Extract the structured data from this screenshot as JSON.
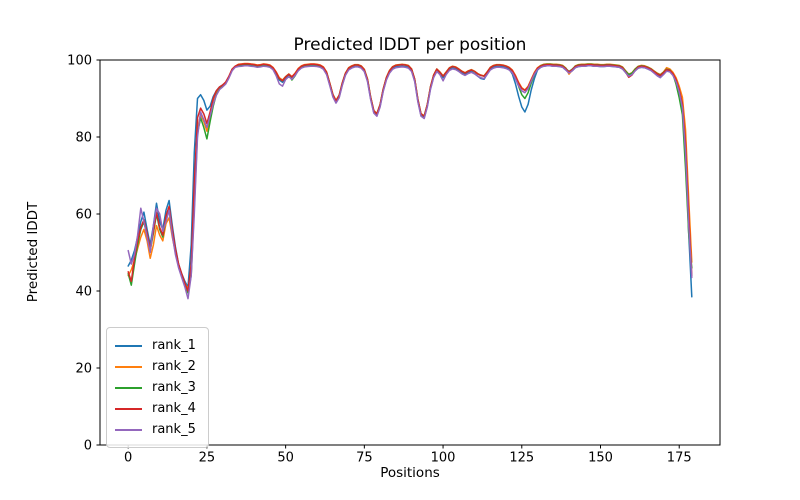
{
  "chart_data": {
    "type": "line",
    "title": "Predicted lDDT per position",
    "xlabel": "Positions",
    "ylabel": "Predicted lDDT",
    "xlim": [
      -8.95,
      187.95
    ],
    "ylim": [
      0,
      100
    ],
    "xticks": [
      0,
      25,
      50,
      75,
      100,
      125,
      150,
      175
    ],
    "yticks": [
      0,
      20,
      40,
      60,
      80,
      100
    ],
    "grid": false,
    "legend_position": "lower left",
    "x_start": 0,
    "x_step": 1,
    "series": [
      {
        "name": "rank_1",
        "color": "#1f77b4",
        "values": [
          46.5,
          48,
          50.5,
          54,
          58,
          60.5,
          56,
          52,
          57,
          62.8,
          58,
          56,
          61,
          63.5,
          57,
          51.5,
          47,
          44.5,
          42.5,
          41,
          52,
          76,
          90,
          91,
          89.5,
          87,
          88,
          90.5,
          92,
          93,
          93.5,
          94.2,
          95.6,
          97.4,
          98.2,
          98.4,
          98.5,
          98.6,
          98.6,
          98.5,
          98.4,
          98.2,
          98.3,
          98.5,
          98.4,
          98.2,
          97.6,
          96.4,
          94.8,
          94.2,
          95.2,
          95.9,
          95.2,
          96.1,
          97.3,
          98.0,
          98.3,
          98.4,
          98.5,
          98.5,
          98.4,
          98.2,
          97.7,
          96.4,
          93.6,
          90.6,
          89.0,
          90.4,
          93.6,
          96.1,
          97.5,
          98.0,
          98.3,
          98.3,
          98.0,
          97.1,
          94.6,
          90.0,
          86.4,
          85.6,
          88.0,
          92.0,
          95.0,
          96.8,
          97.8,
          98.2,
          98.3,
          98.4,
          98.3,
          98.1,
          97.2,
          94.6,
          89.3,
          85.6,
          85.0,
          88.0,
          92.6,
          95.6,
          97.2,
          96.4,
          95.4,
          96.4,
          97.5,
          97.9,
          97.7,
          97.2,
          96.6,
          96.2,
          96.7,
          97.0,
          96.5,
          95.8,
          95.2,
          95.0,
          96.3,
          97.6,
          98.1,
          98.3,
          98.3,
          98.2,
          98.0,
          97.6,
          96.4,
          93.8,
          90.6,
          87.8,
          86.5,
          88.5,
          92.2,
          95.2,
          97.4,
          98.1,
          98.4,
          98.5,
          98.5,
          98.4,
          98.4,
          98.3,
          98.1,
          97.4,
          96.6,
          97.2,
          98.0,
          98.3,
          98.4,
          98.4,
          98.5,
          98.5,
          98.4,
          98.4,
          98.3,
          98.3,
          98.4,
          98.4,
          98.3,
          98.2,
          98.1,
          97.7,
          96.7,
          95.9,
          96.2,
          97.2,
          97.9,
          98.1,
          98.0,
          97.7,
          97.3,
          96.7,
          96.1,
          95.7,
          96.4,
          97.2,
          97.0,
          96.2,
          94.7,
          92.2,
          88.3,
          77.5,
          55.0,
          38.5
        ]
      },
      {
        "name": "rank_2",
        "color": "#ff7f0e",
        "values": [
          44,
          45.5,
          48,
          51,
          54,
          56,
          53,
          48.5,
          52,
          57,
          54.5,
          53,
          57.5,
          59,
          54,
          50,
          46.5,
          44,
          42,
          40.5,
          45,
          64,
          82,
          86,
          84,
          81.5,
          85.5,
          89,
          91.5,
          92.8,
          93.3,
          94.1,
          95.6,
          97.6,
          98.4,
          98.9,
          99.0,
          99.1,
          99.1,
          99.0,
          98.9,
          98.7,
          98.8,
          99.0,
          98.9,
          98.7,
          98.1,
          96.9,
          95.4,
          94.8,
          95.7,
          96.4,
          95.7,
          96.6,
          97.8,
          98.5,
          98.8,
          98.9,
          99.0,
          99.0,
          98.9,
          98.7,
          98.2,
          96.9,
          94.1,
          91.1,
          89.5,
          90.9,
          94.1,
          96.6,
          98.0,
          98.5,
          98.8,
          98.8,
          98.5,
          97.6,
          95.1,
          90.5,
          86.9,
          86.1,
          88.5,
          92.5,
          95.5,
          97.3,
          98.3,
          98.7,
          98.8,
          98.9,
          98.8,
          98.6,
          97.7,
          95.1,
          89.8,
          86.1,
          85.5,
          88.5,
          93.1,
          96.1,
          97.7,
          96.9,
          95.9,
          96.9,
          98.0,
          98.4,
          98.2,
          97.7,
          97.1,
          96.7,
          97.2,
          97.5,
          97.1,
          96.5,
          96.1,
          95.9,
          96.9,
          98.1,
          98.6,
          98.8,
          98.8,
          98.7,
          98.5,
          98.1,
          97.4,
          96.0,
          94.2,
          92.8,
          92.2,
          93.2,
          95.0,
          96.8,
          98.0,
          98.6,
          98.9,
          99.0,
          99.0,
          98.9,
          98.9,
          98.8,
          98.6,
          97.9,
          96.3,
          97.3,
          98.5,
          98.8,
          98.9,
          98.9,
          99.0,
          99.0,
          98.9,
          98.9,
          98.8,
          98.8,
          98.9,
          98.9,
          98.8,
          98.7,
          98.6,
          98.2,
          97.2,
          96.3,
          96.7,
          97.7,
          98.4,
          98.6,
          98.5,
          98.2,
          97.8,
          97.2,
          96.6,
          96.2,
          96.9,
          98.0,
          97.7,
          96.8,
          95.4,
          93.2,
          90.3,
          82.0,
          64.0,
          47.5
        ]
      },
      {
        "name": "rank_3",
        "color": "#2ca02c",
        "values": [
          44.5,
          41.5,
          47,
          52,
          56,
          58,
          54.5,
          50.5,
          55,
          60,
          56,
          54,
          59,
          61,
          55,
          50.5,
          46.5,
          44,
          41.5,
          39.5,
          44,
          62,
          81,
          85,
          82.5,
          79.5,
          84,
          88,
          91,
          92.5,
          93.2,
          94.0,
          95.5,
          97.5,
          98.3,
          98.7,
          98.8,
          98.9,
          98.9,
          98.8,
          98.7,
          98.5,
          98.6,
          98.8,
          98.7,
          98.5,
          97.9,
          96.5,
          95.1,
          94.6,
          95.6,
          96.3,
          94.8,
          95.9,
          97.4,
          98.3,
          98.6,
          98.7,
          98.8,
          98.8,
          98.7,
          98.5,
          98.0,
          96.8,
          94.0,
          91.0,
          89.4,
          90.8,
          94.0,
          96.5,
          97.9,
          98.4,
          98.7,
          98.7,
          98.4,
          97.5,
          95.0,
          90.4,
          86.8,
          86.0,
          88.4,
          92.4,
          95.4,
          97.2,
          98.2,
          98.6,
          98.7,
          98.8,
          98.7,
          98.5,
          97.6,
          95.0,
          89.7,
          86.0,
          85.4,
          88.4,
          93.0,
          96.0,
          97.6,
          96.8,
          95.8,
          96.8,
          97.9,
          98.3,
          98.1,
          97.6,
          97.0,
          96.6,
          97.1,
          97.4,
          97.0,
          96.4,
          96.0,
          95.8,
          96.8,
          98.0,
          98.5,
          98.7,
          98.7,
          98.6,
          98.4,
          98.0,
          97.1,
          95.4,
          93.2,
          91.0,
          90.0,
          91.5,
          94.0,
          96.2,
          97.8,
          98.5,
          98.8,
          98.9,
          98.9,
          98.8,
          98.8,
          98.7,
          98.5,
          97.8,
          97.0,
          97.6,
          98.4,
          98.7,
          98.8,
          98.8,
          98.9,
          98.9,
          98.8,
          98.8,
          98.7,
          98.7,
          98.8,
          98.8,
          98.7,
          98.6,
          98.5,
          98.1,
          97.1,
          96.2,
          96.6,
          97.6,
          98.3,
          98.5,
          98.4,
          98.1,
          97.7,
          97.1,
          96.5,
          96.1,
          96.8,
          97.6,
          97.4,
          96.3,
          93.7,
          90.2,
          85.8,
          72.0,
          55.0,
          46.0
        ]
      },
      {
        "name": "rank_4",
        "color": "#d62728",
        "values": [
          45,
          42.5,
          48.5,
          53,
          56.5,
          58.5,
          55,
          51,
          55.5,
          60.5,
          56.5,
          54.5,
          59.5,
          62,
          56,
          51,
          47,
          44.5,
          42,
          40,
          47,
          68,
          85,
          87.5,
          86,
          83.5,
          86.5,
          90,
          92,
          93,
          93.5,
          94.3,
          95.8,
          97.6,
          98.4,
          98.8,
          98.9,
          99.0,
          99.0,
          98.9,
          98.8,
          98.6,
          98.7,
          98.9,
          98.8,
          98.6,
          98.0,
          96.8,
          95.2,
          94.6,
          95.6,
          96.3,
          95.6,
          96.5,
          97.7,
          98.4,
          98.7,
          98.8,
          98.9,
          98.9,
          98.8,
          98.6,
          98.1,
          96.8,
          94.0,
          91.0,
          89.4,
          90.8,
          94.0,
          96.5,
          97.9,
          98.4,
          98.7,
          98.7,
          98.4,
          97.5,
          95.0,
          90.4,
          86.8,
          86.0,
          88.4,
          92.4,
          95.4,
          97.2,
          98.2,
          98.6,
          98.7,
          98.8,
          98.7,
          98.5,
          97.6,
          95.0,
          89.7,
          86.0,
          85.4,
          88.4,
          93.0,
          96.0,
          97.6,
          96.8,
          95.8,
          96.8,
          97.9,
          98.3,
          98.1,
          97.6,
          97.0,
          96.6,
          97.1,
          97.4,
          97.0,
          96.4,
          96.0,
          95.8,
          96.8,
          98.0,
          98.5,
          98.7,
          98.7,
          98.6,
          98.4,
          98.0,
          97.3,
          95.8,
          94.0,
          92.6,
          92.1,
          93.0,
          94.8,
          96.6,
          97.9,
          98.4,
          98.7,
          98.8,
          98.8,
          98.7,
          98.7,
          98.6,
          98.4,
          97.7,
          96.9,
          97.5,
          98.3,
          98.6,
          98.7,
          98.7,
          98.8,
          98.8,
          98.7,
          98.7,
          98.6,
          98.6,
          98.7,
          98.7,
          98.6,
          98.5,
          98.4,
          98.0,
          96.8,
          95.5,
          96.1,
          97.3,
          98.2,
          98.4,
          98.3,
          98.0,
          97.6,
          97.0,
          96.4,
          96.0,
          96.7,
          97.5,
          97.3,
          96.5,
          94.9,
          92.3,
          88.6,
          78.5,
          60.0,
          44.0
        ]
      },
      {
        "name": "rank_5",
        "color": "#9467bd",
        "values": [
          50.5,
          47,
          49.5,
          54.5,
          61.5,
          58,
          54,
          50,
          57,
          61.5,
          60,
          55.5,
          58,
          61,
          54.5,
          49.5,
          46,
          43.5,
          41,
          38,
          44,
          60,
          80,
          86.5,
          84.5,
          82.5,
          85.5,
          88.5,
          90.8,
          92.3,
          93,
          93.8,
          95.3,
          97.2,
          98.1,
          98.3,
          98.4,
          98.5,
          98.5,
          98.4,
          98.3,
          98.1,
          98.2,
          98.4,
          98.3,
          98.1,
          97.5,
          95.9,
          93.8,
          93.2,
          94.9,
          95.7,
          95.0,
          96.0,
          97.2,
          97.9,
          98.2,
          98.3,
          98.4,
          98.4,
          98.3,
          98.1,
          97.6,
          96.2,
          93.4,
          90.4,
          88.8,
          90.2,
          93.4,
          96.0,
          97.4,
          97.9,
          98.2,
          98.2,
          97.9,
          97.0,
          94.4,
          89.8,
          86.2,
          85.4,
          87.8,
          91.8,
          94.8,
          96.6,
          97.6,
          98.0,
          98.1,
          98.2,
          98.1,
          97.9,
          97.0,
          94.4,
          89.1,
          85.4,
          84.8,
          87.8,
          92.4,
          95.4,
          97.0,
          96.2,
          94.6,
          96.2,
          97.3,
          97.7,
          97.5,
          97.0,
          96.4,
          96.0,
          96.5,
          96.8,
          96.4,
          95.8,
          95.4,
          95.2,
          96.2,
          97.4,
          97.9,
          98.1,
          98.1,
          98.0,
          97.8,
          97.4,
          96.7,
          95.1,
          93.3,
          92.0,
          91.5,
          92.6,
          94.5,
          96.3,
          97.5,
          98.1,
          98.4,
          98.5,
          98.5,
          98.4,
          98.4,
          98.3,
          98.1,
          97.4,
          96.6,
          97.2,
          98.0,
          98.3,
          98.4,
          98.4,
          98.5,
          98.5,
          98.4,
          98.4,
          98.3,
          98.3,
          98.4,
          98.4,
          98.3,
          98.2,
          98.1,
          97.7,
          96.7,
          95.8,
          96.2,
          97.2,
          97.9,
          98.1,
          98.0,
          97.7,
          97.3,
          96.6,
          95.9,
          95.4,
          96.2,
          97.1,
          96.9,
          96.0,
          94.3,
          91.7,
          87.6,
          76.0,
          57.0,
          43.5
        ]
      }
    ]
  }
}
